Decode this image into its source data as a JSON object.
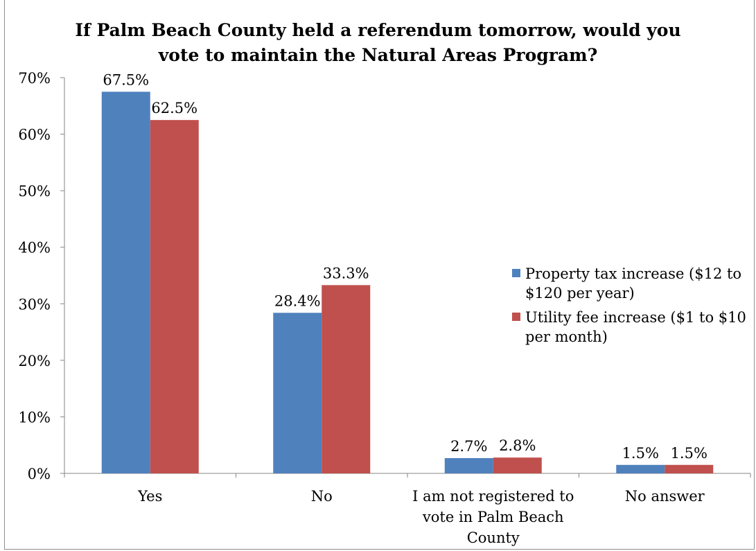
{
  "chart_data": {
    "type": "bar",
    "title_lines": [
      "If Palm Beach County held a referendum tomorrow, would you",
      "vote to maintain the Natural Areas Program?"
    ],
    "categories": [
      [
        "Yes"
      ],
      [
        "No"
      ],
      [
        "I am not registered to",
        "vote in Palm Beach",
        "County"
      ],
      [
        "No answer"
      ]
    ],
    "series": [
      {
        "name_lines": [
          "Property tax increase ($12 to",
          "$120 per year)"
        ],
        "color": "#4F81BD",
        "values": [
          67.5,
          28.4,
          2.7,
          1.5
        ],
        "labels": [
          "67.5%",
          "28.4%",
          "2.7%",
          "1.5%"
        ]
      },
      {
        "name_lines": [
          "Utility fee increase ($1 to $10",
          "per month)"
        ],
        "color": "#C0504D",
        "values": [
          62.5,
          33.3,
          2.8,
          1.5
        ],
        "labels": [
          "62.5%",
          "33.3%",
          "2.8%",
          "1.5%"
        ]
      }
    ],
    "y_ticks": [
      "0%",
      "10%",
      "20%",
      "30%",
      "40%",
      "50%",
      "60%",
      "70%"
    ],
    "ylim": [
      0,
      70
    ],
    "grid": false,
    "legend_position": "right"
  }
}
